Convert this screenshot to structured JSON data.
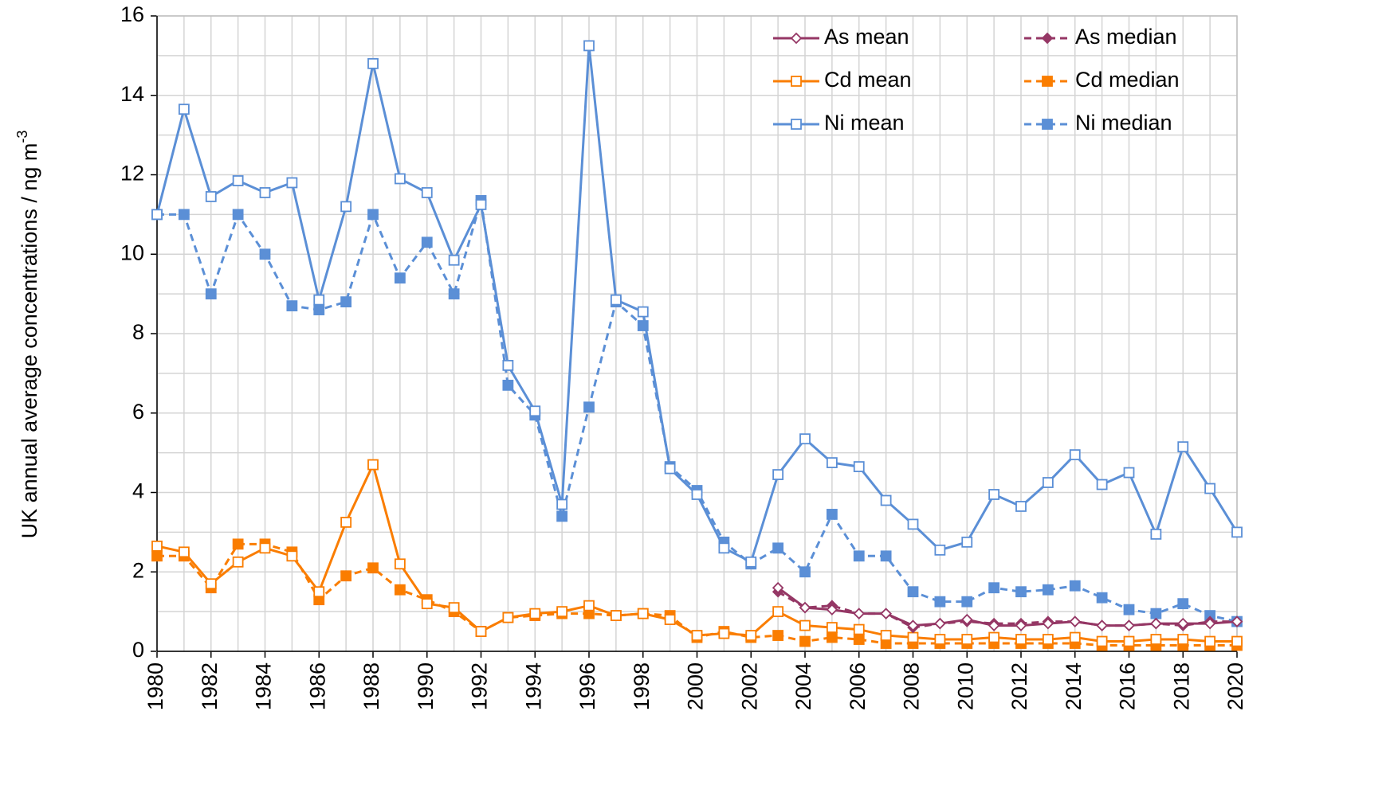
{
  "chart_data": {
    "type": "line",
    "ylabel": [
      "UK annual average concentrations / ng m",
      "-3"
    ],
    "x": [
      1980,
      1981,
      1982,
      1983,
      1984,
      1985,
      1986,
      1987,
      1988,
      1989,
      1990,
      1991,
      1992,
      1993,
      1994,
      1995,
      1996,
      1997,
      1998,
      1999,
      2000,
      2001,
      2002,
      2003,
      2004,
      2005,
      2006,
      2007,
      2008,
      2009,
      2010,
      2011,
      2012,
      2013,
      2014,
      2015,
      2016,
      2017,
      2018,
      2019,
      2020
    ],
    "xlim": [
      1980,
      2020
    ],
    "xticks": [
      1980,
      1982,
      1984,
      1986,
      1988,
      1990,
      1992,
      1994,
      1996,
      1998,
      2000,
      2002,
      2004,
      2006,
      2008,
      2010,
      2012,
      2014,
      2016,
      2018,
      2020
    ],
    "ylim": [
      0,
      16
    ],
    "yticks": [
      0,
      2,
      4,
      6,
      8,
      10,
      12,
      14,
      16
    ],
    "grid": true,
    "minor_grid_step": {
      "x": 1,
      "y": 1
    },
    "legend": "upper right",
    "series": [
      {
        "name": "As mean",
        "color": "#953765",
        "marker": "diamond",
        "filled": false,
        "dashed": false,
        "values": [
          null,
          null,
          null,
          null,
          null,
          null,
          null,
          null,
          null,
          null,
          null,
          null,
          null,
          null,
          null,
          null,
          null,
          null,
          null,
          null,
          null,
          null,
          null,
          1.6,
          1.1,
          1.05,
          0.95,
          0.95,
          0.65,
          0.7,
          0.8,
          0.65,
          0.65,
          0.7,
          0.75,
          0.65,
          0.65,
          0.7,
          0.7,
          0.7,
          0.75
        ]
      },
      {
        "name": "As median",
        "color": "#953765",
        "marker": "diamond",
        "filled": true,
        "dashed": true,
        "values": [
          null,
          null,
          null,
          null,
          null,
          null,
          null,
          null,
          null,
          null,
          null,
          null,
          null,
          null,
          null,
          null,
          null,
          null,
          null,
          null,
          null,
          null,
          null,
          1.5,
          1.1,
          1.15,
          0.95,
          0.95,
          0.6,
          0.7,
          0.75,
          0.7,
          0.7,
          0.75,
          0.75,
          0.65,
          0.65,
          0.7,
          0.65,
          0.75,
          0.75
        ]
      },
      {
        "name": "Cd mean",
        "color": "#fa7d00",
        "marker": "square",
        "filled": false,
        "dashed": false,
        "values": [
          2.65,
          2.5,
          1.7,
          2.25,
          2.6,
          2.4,
          1.5,
          3.25,
          4.7,
          2.2,
          1.2,
          1.1,
          0.5,
          0.85,
          0.95,
          1.0,
          1.15,
          0.9,
          0.95,
          0.8,
          0.4,
          0.45,
          0.4,
          1.0,
          0.65,
          0.6,
          0.55,
          0.4,
          0.35,
          0.3,
          0.3,
          0.35,
          0.3,
          0.3,
          0.35,
          0.25,
          0.25,
          0.3,
          0.3,
          0.25,
          0.25
        ]
      },
      {
        "name": "Cd median",
        "color": "#fa7d00",
        "marker": "square",
        "filled": true,
        "dashed": true,
        "values": [
          2.4,
          2.4,
          1.6,
          2.7,
          2.7,
          2.5,
          1.3,
          1.9,
          2.1,
          1.55,
          1.3,
          1.0,
          0.5,
          0.85,
          0.9,
          0.95,
          0.95,
          0.9,
          0.95,
          0.9,
          0.35,
          0.5,
          0.35,
          0.4,
          0.25,
          0.35,
          0.3,
          0.2,
          0.2,
          0.2,
          0.2,
          0.2,
          0.2,
          0.2,
          0.2,
          0.15,
          0.15,
          0.15,
          0.15,
          0.15,
          0.15
        ]
      },
      {
        "name": "Ni mean",
        "color": "#5b8fd6",
        "marker": "square",
        "filled": false,
        "dashed": false,
        "values": [
          11.0,
          13.65,
          11.45,
          11.85,
          11.55,
          11.8,
          8.85,
          11.2,
          14.8,
          11.9,
          11.55,
          9.85,
          11.25,
          7.2,
          6.05,
          3.7,
          15.25,
          8.85,
          8.55,
          4.6,
          3.95,
          2.6,
          2.25,
          4.45,
          5.35,
          4.75,
          4.65,
          3.8,
          3.2,
          2.55,
          2.75,
          3.95,
          3.65,
          4.25,
          4.95,
          4.2,
          4.5,
          2.95,
          5.15,
          4.1,
          3.0
        ]
      },
      {
        "name": "Ni median",
        "color": "#5b8fd6",
        "marker": "square",
        "filled": true,
        "dashed": true,
        "values": [
          11.0,
          11.0,
          9.0,
          11.0,
          10.0,
          8.7,
          8.6,
          8.8,
          11.0,
          9.4,
          10.3,
          9.0,
          11.35,
          6.7,
          5.95,
          3.4,
          6.15,
          8.8,
          8.2,
          4.65,
          4.05,
          2.75,
          2.2,
          2.6,
          2.0,
          3.45,
          2.4,
          2.4,
          1.5,
          1.25,
          1.25,
          1.6,
          1.5,
          1.55,
          1.65,
          1.35,
          1.05,
          0.95,
          1.2,
          0.9,
          0.75
        ]
      }
    ]
  }
}
